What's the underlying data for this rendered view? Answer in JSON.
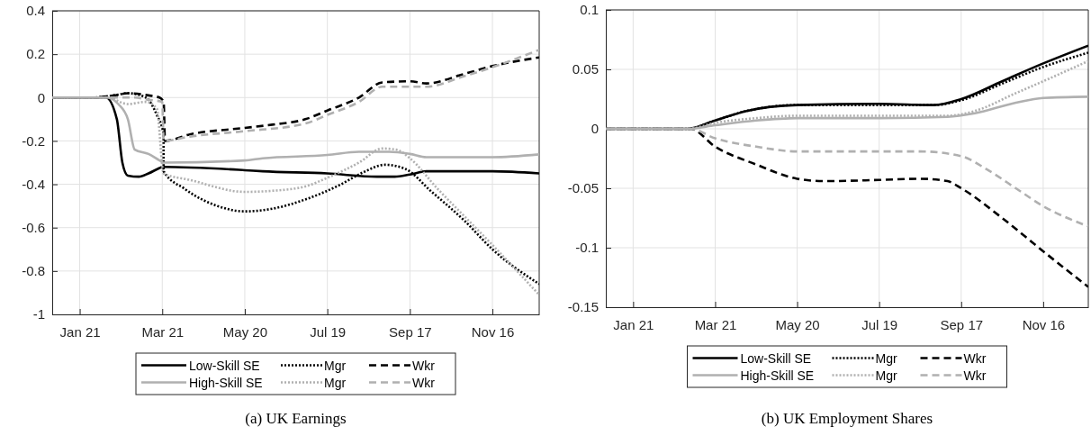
{
  "chart_data": [
    {
      "type": "line",
      "title": "(a) UK Earnings",
      "xlim": [
        "--01-01",
        "--12-20"
      ],
      "xticks": [
        {
          "value": "--01-21",
          "label": "Jan 21"
        },
        {
          "value": "--03-21",
          "label": "Mar 21"
        },
        {
          "value": "--05-20",
          "label": "May 20"
        },
        {
          "value": "--07-19",
          "label": "Jul 19"
        },
        {
          "value": "--09-17",
          "label": "Sep 17"
        },
        {
          "value": "--11-16",
          "label": "Nov 16"
        }
      ],
      "ylim": [
        -1,
        0.4
      ],
      "yticks": [
        -1,
        -0.8,
        -0.6,
        -0.4,
        -0.2,
        0,
        0.2,
        0.4
      ],
      "grid": true,
      "legend": "bottom",
      "series": [
        {
          "name": "Low-Skill SE",
          "color": "#000000",
          "line_style": "solid",
          "x": [
            "--01-01",
            "--02-09",
            "--02-17",
            "--02-21",
            "--02-25",
            "--03-04",
            "--03-11",
            "--03-19",
            "--03-21",
            "--05-20",
            "--06-02",
            "--07-19",
            "--08-24",
            "--09-06",
            "--09-17",
            "--09-29",
            "--11-16",
            "--12-20"
          ],
          "values": [
            0,
            0,
            -0.1,
            -0.3,
            -0.36,
            -0.365,
            -0.35,
            -0.325,
            -0.32,
            -0.335,
            -0.34,
            -0.35,
            -0.365,
            -0.365,
            -0.355,
            -0.34,
            -0.34,
            -0.35
          ]
        },
        {
          "name": "Mgr",
          "color": "#000000",
          "line_style": "dotted",
          "x": [
            "--01-01",
            "--01-31",
            "--02-15",
            "--02-25",
            "--03-09",
            "--03-17",
            "--03-22",
            "--03-22",
            "--04-06",
            "--04-30",
            "--05-20",
            "--06-07",
            "--07-03",
            "--07-29",
            "--08-14",
            "--08-30",
            "--09-14",
            "--10-02",
            "--10-27",
            "--11-16",
            "--12-20"
          ],
          "values": [
            0,
            0,
            0.01,
            0.02,
            0,
            -0.08,
            -0.17,
            -0.34,
            -0.42,
            -0.5,
            -0.525,
            -0.515,
            -0.47,
            -0.4,
            -0.345,
            -0.31,
            -0.33,
            -0.43,
            -0.57,
            -0.7,
            -0.86
          ]
        },
        {
          "name": "Wkr",
          "color": "#000000",
          "line_style": "dashed",
          "x": [
            "--01-01",
            "--01-31",
            "--02-15",
            "--02-25",
            "--03-11",
            "--03-19",
            "--03-22",
            "--03-23",
            "--04-10",
            "--05-20",
            "--06-09",
            "--07-03",
            "--07-19",
            "--08-11",
            "--08-28",
            "--09-17",
            "--09-29",
            "--10-27",
            "--11-16",
            "--12-20"
          ],
          "values": [
            0,
            0,
            0.01,
            0.02,
            0.01,
            0,
            -0.02,
            -0.2,
            -0.17,
            -0.14,
            -0.125,
            -0.1,
            -0.06,
            0,
            0.07,
            0.075,
            0.065,
            0.11,
            0.145,
            0.185
          ]
        },
        {
          "name": "High-Skill SE",
          "color": "#b0b0b0",
          "line_style": "solid",
          "x": [
            "--01-01",
            "--02-10",
            "--02-18",
            "--02-25",
            "--03-01",
            "--03-11",
            "--03-19",
            "--03-22",
            "--05-20",
            "--06-02",
            "--07-19",
            "--08-11",
            "--09-02",
            "--09-17",
            "--09-29",
            "--11-16",
            "--12-20"
          ],
          "values": [
            0,
            0,
            -0.03,
            -0.1,
            -0.24,
            -0.26,
            -0.29,
            -0.3,
            -0.29,
            -0.28,
            -0.265,
            -0.25,
            -0.25,
            -0.26,
            -0.275,
            -0.275,
            -0.262
          ]
        },
        {
          "name": "Mgr",
          "color": "#b0b0b0",
          "line_style": "dotted",
          "x": [
            "--01-01",
            "--02-10",
            "--02-25",
            "--03-09",
            "--03-17",
            "--03-22",
            "--04-10",
            "--05-20",
            "--06-09",
            "--07-03",
            "--07-19",
            "--08-11",
            "--08-28",
            "--09-07",
            "--09-17",
            "--10-07",
            "--10-27",
            "--11-16",
            "--12-20"
          ],
          "values": [
            0,
            0,
            -0.03,
            -0.02,
            -0.05,
            -0.35,
            -0.38,
            -0.435,
            -0.43,
            -0.41,
            -0.37,
            -0.3,
            -0.235,
            -0.24,
            -0.28,
            -0.42,
            -0.55,
            -0.68,
            -0.91
          ]
        },
        {
          "name": "Wkr",
          "color": "#b0b0b0",
          "line_style": "dashed",
          "x": [
            "--01-01",
            "--03-01",
            "--03-11",
            "--03-21",
            "--03-22",
            "--04-10",
            "--05-20",
            "--07-03",
            "--07-19",
            "--08-11",
            "--08-28",
            "--09-17",
            "--09-29",
            "--10-27",
            "--11-16",
            "--12-20"
          ],
          "values": [
            0,
            0,
            -0.01,
            -0.02,
            -0.2,
            -0.18,
            -0.155,
            -0.12,
            -0.08,
            -0.02,
            0.05,
            0.05,
            0.05,
            0.1,
            0.14,
            0.22
          ]
        }
      ]
    },
    {
      "type": "line",
      "title": "(b) UK Employment Shares",
      "xlim": [
        "--01-01",
        "--12-19"
      ],
      "xticks": [
        {
          "value": "--01-21",
          "label": "Jan 21"
        },
        {
          "value": "--03-21",
          "label": "Mar 21"
        },
        {
          "value": "--05-20",
          "label": "May 20"
        },
        {
          "value": "--07-19",
          "label": "Jul 19"
        },
        {
          "value": "--09-17",
          "label": "Sep 17"
        },
        {
          "value": "--11-16",
          "label": "Nov 16"
        }
      ],
      "ylim": [
        -0.15,
        0.1
      ],
      "yticks": [
        -0.15,
        -0.1,
        -0.05,
        0,
        0.05,
        0.1
      ],
      "grid": true,
      "legend": "bottom",
      "series": [
        {
          "name": "Low-Skill SE",
          "color": "#000000",
          "line_style": "solid",
          "x": [
            "--01-01",
            "--03-01",
            "--03-21",
            "--04-13",
            "--05-20",
            "--07-19",
            "--08-28",
            "--09-17",
            "--10-17",
            "--11-16",
            "--12-19"
          ],
          "values": [
            0,
            0,
            0.007,
            0.015,
            0.02,
            0.021,
            0.02,
            0.025,
            0.04,
            0.055,
            0.07
          ]
        },
        {
          "name": "Mgr",
          "color": "#000000",
          "line_style": "dotted",
          "x": [
            "--01-01",
            "--03-01",
            "--03-21",
            "--04-13",
            "--05-20",
            "--07-19",
            "--08-28",
            "--09-17",
            "--10-17",
            "--11-16",
            "--12-19"
          ],
          "values": [
            0,
            0,
            0.007,
            0.015,
            0.02,
            0.02,
            0.02,
            0.024,
            0.038,
            0.052,
            0.064
          ]
        },
        {
          "name": "Wkr",
          "color": "#000000",
          "line_style": "dashed",
          "x": [
            "--01-01",
            "--03-03",
            "--03-21",
            "--04-20",
            "--05-20",
            "--06-09",
            "--07-19",
            "--08-18",
            "--09-07",
            "--09-17",
            "--10-17",
            "--11-16",
            "--12-19"
          ],
          "values": [
            0,
            0,
            -0.015,
            -0.03,
            -0.042,
            -0.044,
            -0.043,
            -0.042,
            -0.044,
            -0.05,
            -0.075,
            -0.103,
            -0.133
          ]
        },
        {
          "name": "High-Skill SE",
          "color": "#b0b0b0",
          "line_style": "solid",
          "x": [
            "--01-01",
            "--03-01",
            "--03-21",
            "--04-20",
            "--05-20",
            "--07-19",
            "--09-07",
            "--09-27",
            "--10-27",
            "--11-16",
            "--12-19"
          ],
          "values": [
            0,
            0,
            0.003,
            0.007,
            0.009,
            0.009,
            0.01,
            0.013,
            0.022,
            0.026,
            0.027
          ]
        },
        {
          "name": "Mgr",
          "color": "#b0b0b0",
          "line_style": "dotted",
          "x": [
            "--01-01",
            "--03-01",
            "--03-21",
            "--04-20",
            "--05-20",
            "--07-19",
            "--09-07",
            "--09-27",
            "--10-27",
            "--11-16",
            "--12-19"
          ],
          "values": [
            0,
            0,
            0.005,
            0.009,
            0.011,
            0.011,
            0.011,
            0.015,
            0.03,
            0.04,
            0.057
          ]
        },
        {
          "name": "Wkr",
          "color": "#b0b0b0",
          "line_style": "dashed",
          "x": [
            "--01-01",
            "--03-03",
            "--03-21",
            "--04-20",
            "--05-20",
            "--07-19",
            "--08-18",
            "--09-17",
            "--10-07",
            "--10-27",
            "--11-16",
            "--12-19"
          ],
          "values": [
            0,
            0,
            -0.008,
            -0.015,
            -0.019,
            -0.019,
            -0.019,
            -0.023,
            -0.035,
            -0.05,
            -0.065,
            -0.082
          ]
        }
      ]
    }
  ]
}
